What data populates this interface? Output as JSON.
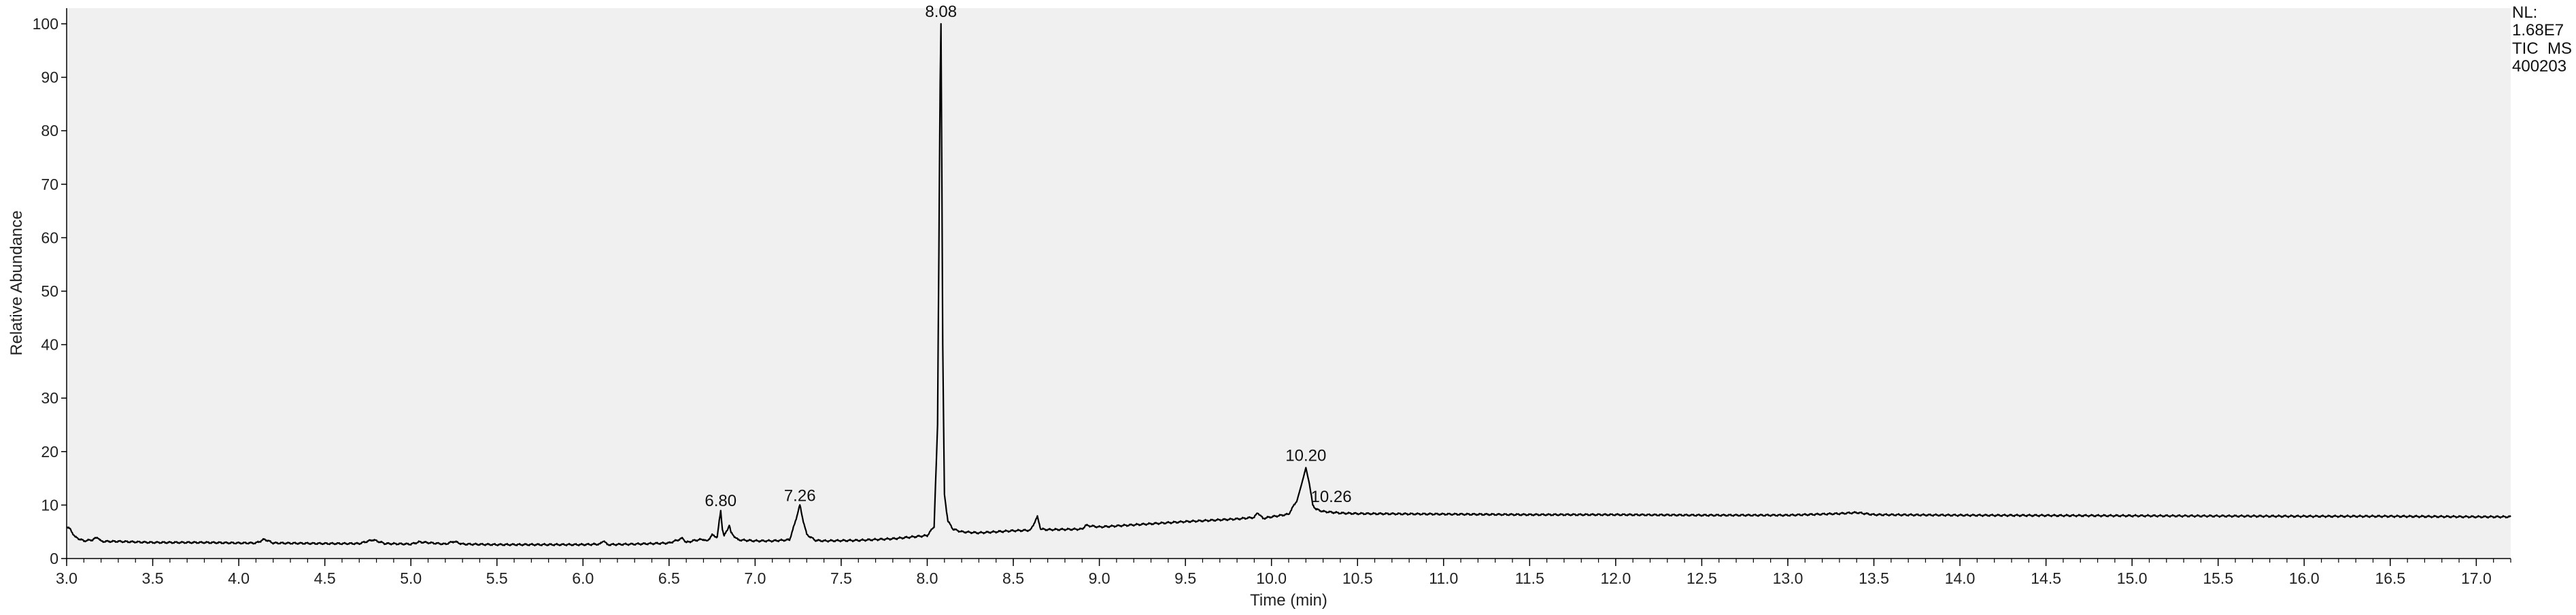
{
  "chart_data": {
    "type": "line",
    "title": "",
    "xlabel": "Time (min)",
    "ylabel": "Relative Abundance",
    "xlim": [
      3.0,
      17.2
    ],
    "ylim": [
      0,
      100
    ],
    "grid": false,
    "x_ticks": [
      "3.0",
      "3.5",
      "4.0",
      "4.5",
      "5.0",
      "5.5",
      "6.0",
      "6.5",
      "7.0",
      "7.5",
      "8.0",
      "8.5",
      "9.0",
      "9.5",
      "10.0",
      "10.5",
      "11.0",
      "11.5",
      "12.0",
      "12.5",
      "13.0",
      "13.5",
      "14.0",
      "14.5",
      "15.0",
      "15.5",
      "16.0",
      "16.5",
      "17.0"
    ],
    "y_ticks": [
      "0",
      "10",
      "20",
      "30",
      "40",
      "50",
      "60",
      "70",
      "80",
      "90",
      "100"
    ],
    "info_box": [
      "NL:",
      "1.68E7",
      "TIC  MS",
      "400203"
    ],
    "peak_labels": [
      {
        "text": "6.80",
        "x": 6.8,
        "y": 8.5
      },
      {
        "text": "7.26",
        "x": 7.26,
        "y": 9.5
      },
      {
        "text": "8.08",
        "x": 8.08,
        "y": 100
      },
      {
        "text": "10.20",
        "x": 10.2,
        "y": 17
      },
      {
        "text": "10.26",
        "x": 10.26,
        "y": 8.8
      }
    ],
    "series": [
      {
        "color": "#000000",
        "x": [
          3.0,
          3.02,
          3.05,
          3.1,
          3.15,
          3.18,
          3.2,
          3.3,
          3.5,
          3.8,
          4.0,
          4.1,
          4.15,
          4.2,
          4.5,
          4.7,
          4.78,
          4.85,
          5.0,
          5.05,
          5.2,
          5.25,
          5.3,
          5.5,
          5.8,
          6.0,
          6.1,
          6.12,
          6.14,
          6.3,
          6.5,
          6.58,
          6.6,
          6.65,
          6.7,
          6.72,
          6.75,
          6.78,
          6.8,
          6.81,
          6.82,
          6.84,
          6.85,
          6.86,
          6.9,
          7.0,
          7.1,
          7.2,
          7.23,
          7.26,
          7.28,
          7.3,
          7.35,
          7.4,
          7.6,
          7.8,
          8.0,
          8.04,
          8.06,
          8.075,
          8.08,
          8.085,
          8.09,
          8.1,
          8.12,
          8.15,
          8.2,
          8.3,
          8.5,
          8.6,
          8.64,
          8.66,
          8.7,
          8.9,
          8.92,
          9.0,
          9.2,
          9.5,
          9.8,
          9.9,
          9.92,
          9.95,
          10.0,
          10.1,
          10.15,
          10.18,
          10.2,
          10.22,
          10.24,
          10.26,
          10.3,
          10.4,
          10.5,
          11.0,
          11.5,
          12.0,
          12.5,
          13.0,
          13.3,
          13.4,
          13.5,
          14.0,
          15.0,
          16.0,
          16.5,
          17.0,
          17.2
        ],
        "y": [
          6.0,
          5.5,
          4.0,
          3.3,
          3.5,
          4.0,
          3.2,
          3.2,
          3.0,
          3.0,
          2.9,
          2.9,
          3.6,
          2.9,
          2.8,
          2.8,
          3.5,
          2.8,
          2.7,
          3.1,
          2.7,
          3.2,
          2.7,
          2.6,
          2.6,
          2.6,
          2.7,
          3.4,
          2.6,
          2.7,
          2.9,
          3.8,
          3.0,
          3.4,
          3.6,
          3.2,
          4.4,
          4.0,
          9.0,
          5.5,
          4.2,
          5.5,
          6.3,
          4.8,
          3.5,
          3.3,
          3.3,
          3.5,
          6.5,
          10.0,
          7.0,
          4.5,
          3.4,
          3.3,
          3.4,
          3.7,
          4.3,
          6.0,
          25.0,
          89.0,
          100.0,
          72.0,
          40.0,
          12.0,
          7.0,
          5.5,
          5.0,
          4.8,
          5.2,
          5.3,
          7.8,
          5.5,
          5.4,
          5.5,
          6.2,
          5.9,
          6.3,
          6.9,
          7.4,
          7.7,
          8.6,
          7.5,
          7.8,
          8.3,
          11.0,
          14.5,
          17.0,
          14.0,
          10.0,
          9.2,
          8.8,
          8.5,
          8.4,
          8.3,
          8.2,
          8.2,
          8.1,
          8.1,
          8.4,
          8.6,
          8.2,
          8.1,
          8.0,
          7.9,
          7.9,
          7.8,
          7.8
        ]
      }
    ]
  }
}
